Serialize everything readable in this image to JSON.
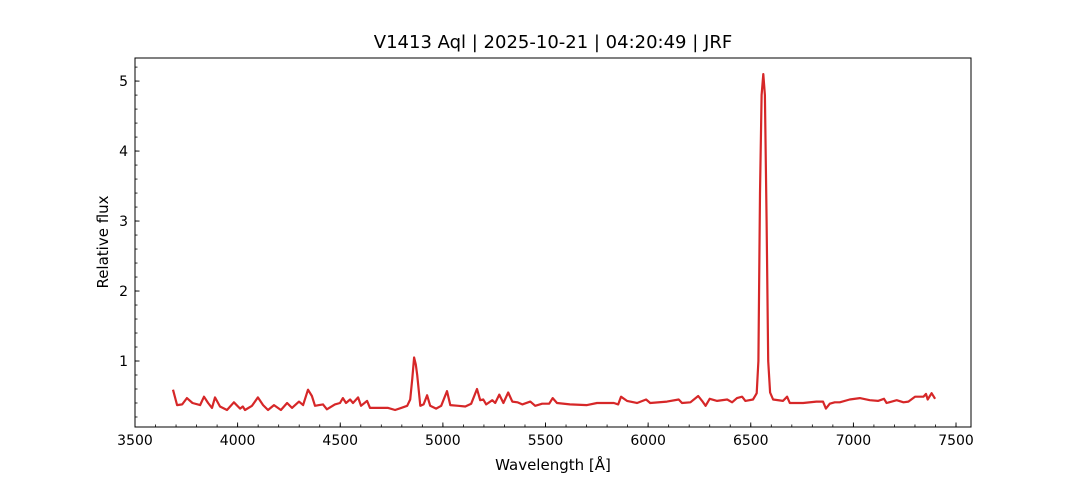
{
  "chart_data": {
    "type": "line",
    "title": "V1413 Aql | 2025-10-21 | 04:20:49 | JRF",
    "xlabel": "Wavelength [Å]",
    "ylabel": "Relative flux",
    "xlim": [
      3500,
      7573
    ],
    "ylim": [
      0.057,
      5.33
    ],
    "xticks": [
      3500,
      4000,
      4500,
      5000,
      5500,
      6000,
      6500,
      7000,
      7500
    ],
    "yticks": [
      1,
      2,
      3,
      4,
      5
    ],
    "x_minor_step": 100,
    "y_minor_step": 0.2,
    "grid": false,
    "tick_direction": "in",
    "line_color": "#d62728",
    "series": [
      {
        "x": [
          3685,
          3705,
          3730,
          3753,
          3780,
          3817,
          3836,
          3856,
          3875,
          3890,
          3914,
          3948,
          3982,
          4012,
          4025,
          4036,
          4070,
          4099,
          4124,
          4148,
          4177,
          4211,
          4241,
          4265,
          4299,
          4319,
          4343,
          4362,
          4377,
          4397,
          4416,
          4435,
          4474,
          4499,
          4513,
          4528,
          4548,
          4562,
          4587,
          4601,
          4631,
          4645,
          4670,
          4699,
          4733,
          4767,
          4797,
          4826,
          4841,
          4851,
          4860,
          4868,
          4875,
          4890,
          4906,
          4923,
          4938,
          4967,
          4992,
          5020,
          5036,
          5075,
          5109,
          5138,
          5166,
          5182,
          5197,
          5211,
          5241,
          5255,
          5275,
          5295,
          5318,
          5338,
          5363,
          5387,
          5426,
          5450,
          5484,
          5518,
          5535,
          5556,
          5619,
          5702,
          5751,
          5833,
          5854,
          5868,
          5897,
          5946,
          5990,
          6010,
          6092,
          6149,
          6165,
          6206,
          6244,
          6263,
          6280,
          6300,
          6336,
          6385,
          6409,
          6433,
          6458,
          6474,
          6511,
          6523,
          6529,
          6537,
          6545,
          6553,
          6561,
          6569,
          6577,
          6585,
          6594,
          6609,
          6657,
          6677,
          6690,
          6755,
          6820,
          6852,
          6866,
          6885,
          6909,
          6934,
          6982,
          7031,
          7080,
          7120,
          7149,
          7162,
          7211,
          7244,
          7268,
          7300,
          7341,
          7354,
          7362,
          7381,
          7398
        ],
        "y": [
          0.59,
          0.37,
          0.38,
          0.47,
          0.4,
          0.37,
          0.49,
          0.4,
          0.33,
          0.48,
          0.35,
          0.3,
          0.41,
          0.32,
          0.35,
          0.3,
          0.36,
          0.48,
          0.37,
          0.3,
          0.37,
          0.3,
          0.4,
          0.33,
          0.42,
          0.37,
          0.59,
          0.5,
          0.36,
          0.37,
          0.38,
          0.31,
          0.38,
          0.4,
          0.47,
          0.4,
          0.45,
          0.4,
          0.48,
          0.36,
          0.43,
          0.33,
          0.33,
          0.33,
          0.33,
          0.3,
          0.33,
          0.36,
          0.45,
          0.75,
          1.05,
          0.95,
          0.8,
          0.36,
          0.38,
          0.51,
          0.36,
          0.32,
          0.36,
          0.57,
          0.37,
          0.36,
          0.35,
          0.39,
          0.6,
          0.44,
          0.45,
          0.38,
          0.44,
          0.4,
          0.52,
          0.4,
          0.55,
          0.42,
          0.41,
          0.38,
          0.42,
          0.36,
          0.39,
          0.39,
          0.47,
          0.4,
          0.38,
          0.37,
          0.4,
          0.4,
          0.38,
          0.49,
          0.43,
          0.4,
          0.45,
          0.4,
          0.42,
          0.45,
          0.4,
          0.41,
          0.5,
          0.43,
          0.36,
          0.46,
          0.43,
          0.45,
          0.41,
          0.47,
          0.49,
          0.43,
          0.45,
          0.51,
          0.54,
          1.0,
          3.4,
          4.8,
          5.1,
          4.8,
          3.0,
          1.0,
          0.55,
          0.45,
          0.43,
          0.49,
          0.4,
          0.4,
          0.42,
          0.42,
          0.32,
          0.39,
          0.41,
          0.41,
          0.45,
          0.47,
          0.44,
          0.43,
          0.46,
          0.4,
          0.44,
          0.41,
          0.42,
          0.49,
          0.49,
          0.53,
          0.45,
          0.54,
          0.46
        ]
      }
    ]
  }
}
